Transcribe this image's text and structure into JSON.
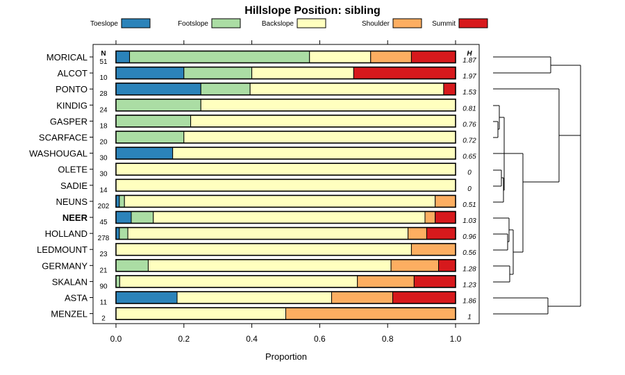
{
  "chart_data": {
    "type": "bar",
    "stacked": true,
    "orientation": "horizontal",
    "title": "Hillslope Position: sibling",
    "xlabel": "Proportion",
    "xlim": [
      0,
      1
    ],
    "x_ticks": [
      "0.0",
      "0.2",
      "0.4",
      "0.6",
      "0.8",
      "1.0"
    ],
    "n_header": "N",
    "h_header": "H",
    "legend_position": "top",
    "series": [
      {
        "name": "Toeslope",
        "color": "#2B83BA"
      },
      {
        "name": "Footslope",
        "color": "#ABDDA4"
      },
      {
        "name": "Backslope",
        "color": "#FFFFBF"
      },
      {
        "name": "Shoulder",
        "color": "#FDAE61"
      },
      {
        "name": "Summit",
        "color": "#D7191C"
      }
    ],
    "rows": [
      {
        "name": "MORICAL",
        "n": "51",
        "h": "1.87",
        "values": [
          0.04,
          0.53,
          0.18,
          0.12,
          0.13
        ]
      },
      {
        "name": "ALCOT",
        "n": "10",
        "h": "1.97",
        "values": [
          0.2,
          0.2,
          0.3,
          0.0,
          0.3
        ]
      },
      {
        "name": "PONTO",
        "n": "28",
        "h": "1.53",
        "values": [
          0.25,
          0.145,
          0.57,
          0.0,
          0.035
        ]
      },
      {
        "name": "KINDIG",
        "n": "24",
        "h": "0.81",
        "values": [
          0.0,
          0.25,
          0.75,
          0.0,
          0.0
        ]
      },
      {
        "name": "GASPER",
        "n": "18",
        "h": "0.76",
        "values": [
          0.0,
          0.22,
          0.78,
          0.0,
          0.0
        ]
      },
      {
        "name": "SCARFACE",
        "n": "20",
        "h": "0.72",
        "values": [
          0.0,
          0.2,
          0.8,
          0.0,
          0.0
        ]
      },
      {
        "name": "WASHOUGAL",
        "n": "30",
        "h": "0.65",
        "values": [
          0.167,
          0.0,
          0.833,
          0.0,
          0.0
        ]
      },
      {
        "name": "OLETE",
        "n": "30",
        "h": "0",
        "values": [
          0.0,
          0.0,
          1.0,
          0.0,
          0.0
        ]
      },
      {
        "name": "SADIE",
        "n": "14",
        "h": "0",
        "values": [
          0.0,
          0.0,
          1.0,
          0.0,
          0.0
        ]
      },
      {
        "name": "NEUNS",
        "n": "202",
        "h": "0.51",
        "values": [
          0.01,
          0.015,
          0.915,
          0.06,
          0.0
        ]
      },
      {
        "name": "NEER",
        "n": "45",
        "h": "1.03",
        "values": [
          0.045,
          0.065,
          0.8,
          0.03,
          0.06
        ],
        "bold": true
      },
      {
        "name": "HOLLAND",
        "n": "278",
        "h": "0.96",
        "values": [
          0.01,
          0.025,
          0.825,
          0.055,
          0.085
        ]
      },
      {
        "name": "LEDMOUNT",
        "n": "23",
        "h": "0.56",
        "values": [
          0.0,
          0.0,
          0.87,
          0.13,
          0.0
        ]
      },
      {
        "name": "GERMANY",
        "n": "21",
        "h": "1.28",
        "values": [
          0.0,
          0.095,
          0.715,
          0.14,
          0.05
        ]
      },
      {
        "name": "SKALAN",
        "n": "90",
        "h": "1.23",
        "values": [
          0.0,
          0.011,
          0.7,
          0.167,
          0.122
        ]
      },
      {
        "name": "ASTA",
        "n": "11",
        "h": "1.86",
        "values": [
          0.18,
          0.0,
          0.455,
          0.18,
          0.185
        ]
      },
      {
        "name": "MENZEL",
        "n": "2",
        "h": "1",
        "values": [
          0.0,
          0.0,
          0.5,
          0.5,
          0.0
        ]
      }
    ]
  }
}
